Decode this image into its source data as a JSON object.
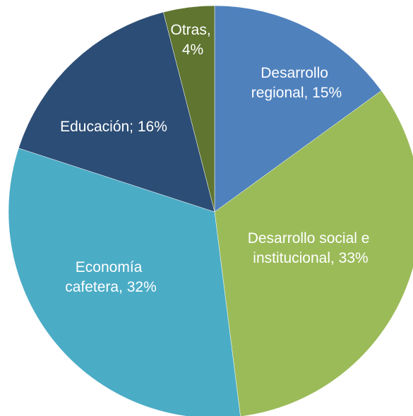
{
  "chart_data": {
    "type": "pie",
    "values": [
      15,
      33,
      32,
      16,
      4
    ],
    "value_labels": [
      "Desarrollo regional, 15%",
      "Desarrollo social e institucional, 33%",
      "Economía cafetera, 32%",
      "Educación; 16%",
      "Otras, 4%"
    ],
    "colors": [
      "#4f81bd",
      "#9bbb59",
      "#4bacc6",
      "#2c4d75",
      "#5f7530"
    ]
  }
}
